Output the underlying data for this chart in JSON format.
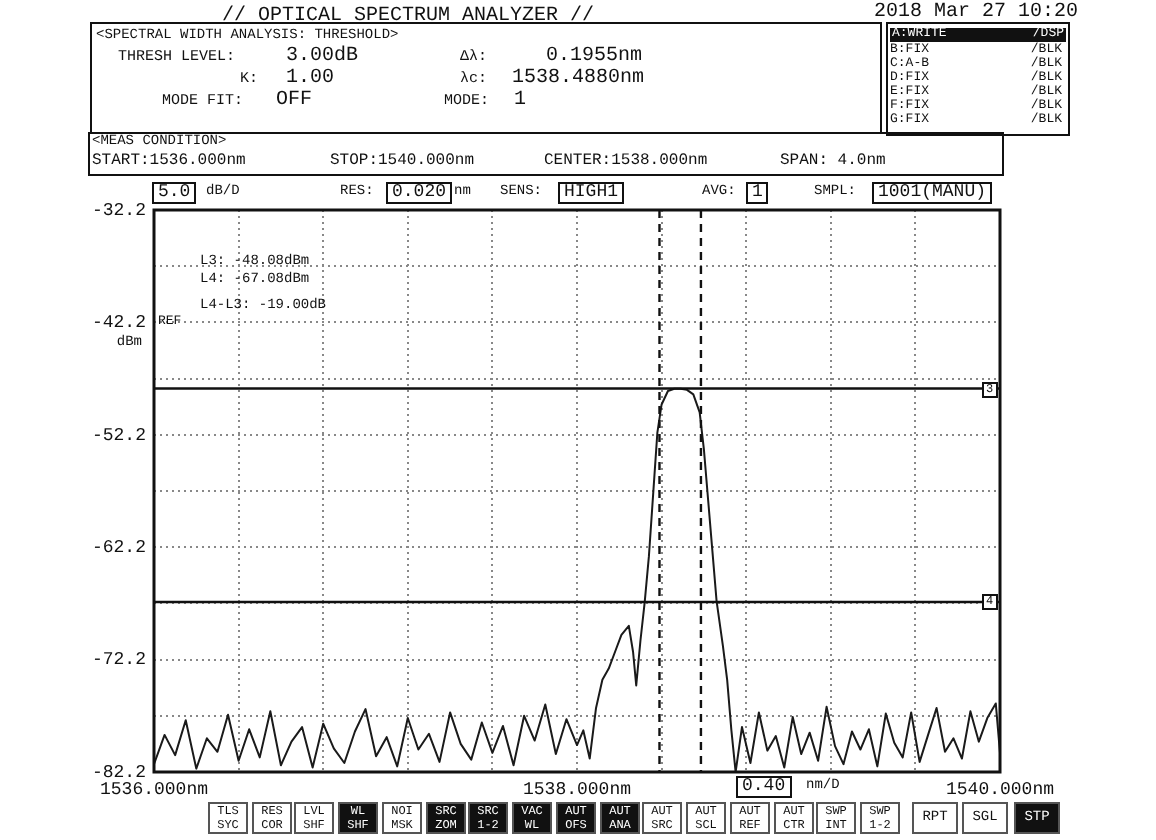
{
  "chart_data": {
    "type": "line",
    "title": "// OPTICAL SPECTRUM ANALYZER //",
    "ylabel": "dBm",
    "series": [
      {
        "color": "#1a1a1a",
        "x": [
          1536.0,
          1536.05,
          1536.1,
          1536.15,
          1536.2,
          1536.25,
          1536.3,
          1536.35,
          1536.4,
          1536.45,
          1536.5,
          1536.55,
          1536.6,
          1536.65,
          1536.7,
          1536.75,
          1536.8,
          1536.85,
          1536.9,
          1536.95,
          1537.0,
          1537.05,
          1537.1,
          1537.15,
          1537.2,
          1537.25,
          1537.3,
          1537.35,
          1537.4,
          1537.45,
          1537.5,
          1537.55,
          1537.6,
          1537.65,
          1537.7,
          1537.75,
          1537.8,
          1537.85,
          1537.9,
          1537.95,
          1538.0,
          1538.03,
          1538.06,
          1538.09,
          1538.12,
          1538.15,
          1538.18,
          1538.21,
          1538.245,
          1538.265,
          1538.28,
          1538.3,
          1538.32,
          1538.34,
          1538.36,
          1538.38,
          1538.4,
          1538.43,
          1538.46,
          1538.49,
          1538.52,
          1538.55,
          1538.58,
          1538.6,
          1538.62,
          1538.64,
          1538.66,
          1538.69,
          1538.71,
          1538.73,
          1538.75,
          1538.78,
          1538.82,
          1538.86,
          1538.9,
          1538.94,
          1538.98,
          1539.02,
          1539.06,
          1539.1,
          1539.14,
          1539.18,
          1539.22,
          1539.26,
          1539.3,
          1539.34,
          1539.38,
          1539.42,
          1539.46,
          1539.5,
          1539.54,
          1539.58,
          1539.62,
          1539.66,
          1539.7,
          1539.74,
          1539.78,
          1539.82,
          1539.86,
          1539.9,
          1539.94,
          1539.98,
          1540.0
        ],
        "values": [
          -81.5,
          -78.9,
          -80.7,
          -77.6,
          -81.9,
          -79.2,
          -80.4,
          -77.1,
          -81.2,
          -78.4,
          -80.9,
          -76.8,
          -81.6,
          -79.5,
          -78.2,
          -81.8,
          -77.9,
          -80.1,
          -81.4,
          -78.6,
          -76.6,
          -80.8,
          -79.1,
          -81.7,
          -77.4,
          -80.2,
          -78.8,
          -81.3,
          -76.9,
          -79.7,
          -81.1,
          -77.8,
          -80.5,
          -78.1,
          -81.6,
          -77.2,
          -79.4,
          -76.2,
          -80.6,
          -77.5,
          -79.8,
          -78.5,
          -81.0,
          -76.5,
          -74.0,
          -73.0,
          -71.5,
          -70.0,
          -69.2,
          -71.5,
          -74.5,
          -70.5,
          -67.1,
          -63.0,
          -57.5,
          -52.0,
          -49.5,
          -48.3,
          -48.1,
          -48.1,
          -48.2,
          -48.6,
          -50.2,
          -53.5,
          -58.0,
          -62.5,
          -67.0,
          -71.0,
          -74.0,
          -78.5,
          -82.2,
          -78.2,
          -81.4,
          -76.9,
          -80.3,
          -79.0,
          -81.8,
          -77.3,
          -80.6,
          -78.7,
          -81.2,
          -76.4,
          -79.9,
          -81.5,
          -78.6,
          -80.2,
          -78.4,
          -81.7,
          -77.0,
          -79.6,
          -80.9,
          -76.9,
          -81.3,
          -78.9,
          -76.5,
          -80.4,
          -79.2,
          -81.0,
          -76.8,
          -79.5,
          -77.4,
          -76.1,
          -80.5
        ]
      }
    ],
    "xlim": [
      1536,
      1540
    ],
    "xticks": [
      {
        "value": 1536,
        "label": "1536.000nm"
      },
      {
        "value": 1536.4,
        "label": null
      },
      {
        "value": 1536.8,
        "label": null
      },
      {
        "value": 1537.2,
        "label": null
      },
      {
        "value": 1537.6,
        "label": null
      },
      {
        "value": 1538,
        "label": "1538.000nm"
      },
      {
        "value": 1538.4,
        "label": null
      },
      {
        "value": 1538.8,
        "label": null
      },
      {
        "value": 1539.2,
        "label": null
      },
      {
        "value": 1539.6,
        "label": null
      },
      {
        "value": 1540,
        "label": "1540.000nm"
      }
    ],
    "ylim": [
      -82.2,
      -32.2
    ],
    "yticks": [
      -32.2,
      {
        "value": -37.2,
        "label": null
      },
      -42.2,
      {
        "value": -47.2,
        "label": null
      },
      -52.2,
      {
        "value": -57.2,
        "label": null
      },
      -62.2,
      {
        "value": -67.2,
        "label": null
      },
      -72.2,
      {
        "value": -77.2,
        "label": null
      },
      -82.2
    ],
    "grid": true,
    "legend": false,
    "ref_lines": [
      {
        "axis": "y",
        "value": -48.08,
        "line_style": "solid"
      },
      {
        "axis": "y",
        "value": -67.08,
        "line_style": "solid"
      },
      {
        "axis": "x",
        "value": 1538.39,
        "line_style": "dashed"
      },
      {
        "axis": "x",
        "value": 1538.586,
        "line_style": "dashed"
      }
    ],
    "annotations": [
      "<SPECTRAL WIDTH ANALYSIS: THRESHOLD>",
      "THRESH LEVEL:",
      "3.00dB",
      "K:",
      "1.00",
      "MODE FIT:",
      "OFF",
      "Δλ:",
      "0.1955nm",
      "λc:",
      "1538.4880nm",
      "MODE:",
      "1",
      "A:WRITE /DSP",
      "B:FIX /BLK",
      "C:A-B /BLK",
      "D:FIX /BLK",
      "E:FIX /BLK",
      "F:FIX /BLK",
      "G:FIX /BLK",
      "<MEAS CONDITION>",
      "START:1536.000nm",
      "STOP:1540.000nm",
      "CENTER:1538.000nm",
      "SPAN: 4.0nm",
      "5.0",
      "dB/D",
      "RES:",
      "0.020",
      "nm",
      "SENS:",
      "HIGH1",
      "AVG:",
      "1",
      "SMPL:",
      "1001(MANU)",
      "L3: -48.08dBm",
      "L4: -67.08dBm",
      "L4-L3: -19.00dB",
      "REF",
      "0.40",
      "nm/D",
      "TLS SYC",
      "RES COR",
      "LVL SHF",
      "WL SHF",
      "NOI MSK",
      "SRC ZOM",
      "SRC 1-2",
      "VAC WL",
      "AUT OFS",
      "AUT ANA",
      "AUT SRC",
      "AUT SCL",
      "AUT REF",
      "AUT CTR",
      "SWP INT",
      "SWP 1-2",
      "RPT",
      "SGL",
      "STP",
      "2018 Mar 27 10:20",
      "3",
      "4"
    ]
  }
}
